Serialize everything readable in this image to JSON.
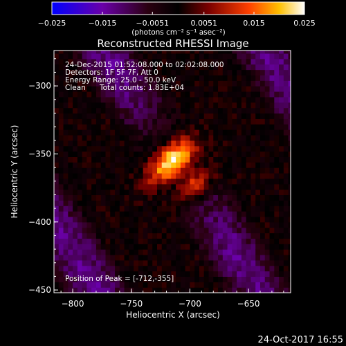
{
  "chart_data": {
    "type": "heatmap",
    "title": "Reconstructed RHESSI Image",
    "xlabel": "Heliocentric X (arcsec)",
    "ylabel": "Heliocentric Y (arcsec)",
    "xlim": [
      -816,
      -614
    ],
    "ylim": [
      -452,
      -274
    ],
    "x_ticks": [
      -800,
      -750,
      -700,
      -650
    ],
    "x_tick_labels": [
      "−800",
      "−750",
      "−700",
      "−650"
    ],
    "y_ticks": [
      -300,
      -350,
      -400,
      -450
    ],
    "y_tick_labels": [
      "−300",
      "−350",
      "−400",
      "−450"
    ],
    "colorbar": {
      "range": [
        -0.025,
        0.025
      ],
      "ticks": [
        -0.025,
        -0.015,
        -0.0051,
        0.0051,
        0.015,
        0.025
      ],
      "tick_labels": [
        "−0.025",
        "−0.015",
        "−0.0051",
        "0.0051",
        "0.015",
        "0.025"
      ],
      "units_label": "(photons cm⁻² s⁻¹ asec⁻²)",
      "colors": [
        "#0000ff",
        "#6a00a8",
        "#2a0010",
        "#000000",
        "#7a0000",
        "#ff4000",
        "#ffc000",
        "#ffffff"
      ]
    },
    "annotations": {
      "time_range": "24-Dec-2015 01:52:08.000 to 02:02:08.000",
      "detectors": "Detectors: 1F 5F 7F, Att 0",
      "energy": "Energy Range: 25.0 - 50.0 keV",
      "clean": "Clean",
      "counts": "Total counts: 1.83E+04",
      "peak": "Position of Peak = [-712,-355]"
    },
    "peak": [
      -712,
      -355
    ],
    "sources": [
      {
        "x": -715,
        "y": -355,
        "value": 0.025
      },
      {
        "x": -695,
        "y": -373,
        "value": 0.016
      }
    ]
  },
  "footer": {
    "date": "24-Oct-2017 16:55"
  }
}
